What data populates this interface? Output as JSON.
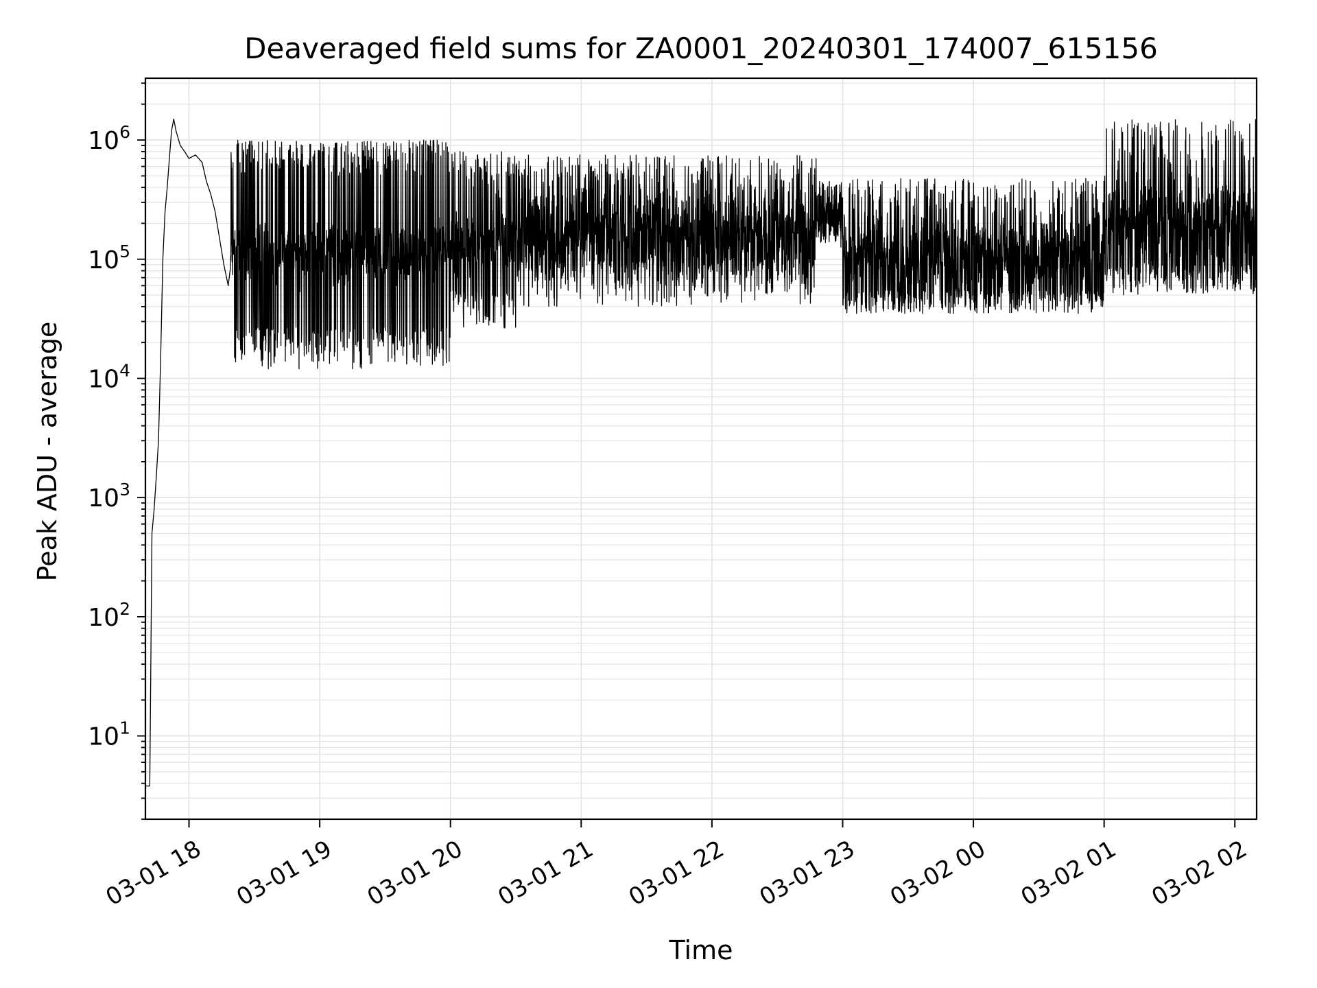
{
  "chart_data": {
    "type": "line",
    "title": "Deaveraged field sums for ZA0001_20240301_174007_615156",
    "xlabel": "Time",
    "ylabel": "Peak ADU - average",
    "y_scale": "log",
    "ylim": [
      2,
      3300000
    ],
    "xlim": [
      "2024-03-01T17:40:00",
      "2024-03-02T02:10:00"
    ],
    "grid": true,
    "legend": "none",
    "line_color": "#000000",
    "x_ticks": [
      {
        "t": "2024-03-01T18:00:00",
        "label": "03-01 18"
      },
      {
        "t": "2024-03-01T19:00:00",
        "label": "03-01 19"
      },
      {
        "t": "2024-03-01T20:00:00",
        "label": "03-01 20"
      },
      {
        "t": "2024-03-01T21:00:00",
        "label": "03-01 21"
      },
      {
        "t": "2024-03-01T22:00:00",
        "label": "03-01 22"
      },
      {
        "t": "2024-03-01T23:00:00",
        "label": "03-01 23"
      },
      {
        "t": "2024-03-02T00:00:00",
        "label": "03-02 00"
      },
      {
        "t": "2024-03-02T01:00:00",
        "label": "03-02 01"
      },
      {
        "t": "2024-03-02T02:00:00",
        "label": "03-02 02"
      }
    ],
    "y_ticks": [
      {
        "v": 10,
        "base": "10",
        "exp": "1"
      },
      {
        "v": 100,
        "base": "10",
        "exp": "2"
      },
      {
        "v": 1000,
        "base": "10",
        "exp": "3"
      },
      {
        "v": 10000,
        "base": "10",
        "exp": "4"
      },
      {
        "v": 100000,
        "base": "10",
        "exp": "5"
      },
      {
        "v": 1000000,
        "base": "10",
        "exp": "6"
      }
    ],
    "series": [
      {
        "points": [
          [
            "2024-03-01T17:40:00",
            3.8
          ],
          [
            "2024-03-01T17:42:00",
            3.8
          ],
          [
            "2024-03-01T17:43:00",
            500
          ],
          [
            "2024-03-01T17:44:00",
            800
          ],
          [
            "2024-03-01T17:45:00",
            1500
          ],
          [
            "2024-03-01T17:46:00",
            3000
          ],
          [
            "2024-03-01T17:47:00",
            15000
          ],
          [
            "2024-03-01T17:48:00",
            100000
          ],
          [
            "2024-03-01T17:49:00",
            250000
          ],
          [
            "2024-03-01T17:50:00",
            400000
          ],
          [
            "2024-03-01T17:51:00",
            700000
          ],
          [
            "2024-03-01T17:52:00",
            1200000
          ],
          [
            "2024-03-01T17:53:00",
            1500000
          ],
          [
            "2024-03-01T17:54:00",
            1200000
          ],
          [
            "2024-03-01T17:56:00",
            900000
          ],
          [
            "2024-03-01T17:58:00",
            800000
          ],
          [
            "2024-03-01T18:00:00",
            700000
          ],
          [
            "2024-03-01T18:03:00",
            750000
          ],
          [
            "2024-03-01T18:06:00",
            650000
          ],
          [
            "2024-03-01T18:08:00",
            450000
          ],
          [
            "2024-03-01T18:10:00",
            350000
          ],
          [
            "2024-03-01T18:12:00",
            250000
          ],
          [
            "2024-03-01T18:14:00",
            150000
          ],
          [
            "2024-03-01T18:16:00",
            90000
          ],
          [
            "2024-03-01T18:18:00",
            60000
          ],
          [
            "2024-03-01T18:20:00",
            20000
          ],
          [
            "2024-03-01T18:30:00",
            700000
          ],
          [
            "2024-03-01T18:45:00",
            15000
          ],
          [
            "2024-03-01T18:55:00",
            800000
          ],
          [
            "2024-03-01T19:00:00",
            12000
          ],
          [
            "2024-03-01T19:15:00",
            900000
          ],
          [
            "2024-03-01T19:30:00",
            20000
          ],
          [
            "2024-03-01T19:50:00",
            16000
          ],
          [
            "2024-03-01T20:00:00",
            600000
          ],
          [
            "2024-03-01T20:20:00",
            40000
          ],
          [
            "2024-03-01T20:40:00",
            120000
          ],
          [
            "2024-03-01T21:00:00",
            150000
          ],
          [
            "2024-03-01T21:30:00",
            110000
          ],
          [
            "2024-03-01T22:00:00",
            90000
          ],
          [
            "2024-03-01T22:30:00",
            70000
          ],
          [
            "2024-03-01T22:50:00",
            280000
          ],
          [
            "2024-03-01T23:00:00",
            45000
          ],
          [
            "2024-03-01T23:30:00",
            50000
          ],
          [
            "2024-03-02T00:00:00",
            55000
          ],
          [
            "2024-03-02T00:30:00",
            60000
          ],
          [
            "2024-03-02T01:00:00",
            95000
          ],
          [
            "2024-03-02T01:30:00",
            70000
          ],
          [
            "2024-03-02T02:00:00",
            60000
          ],
          [
            "2024-03-02T02:10:00",
            90000
          ]
        ]
      }
    ]
  }
}
